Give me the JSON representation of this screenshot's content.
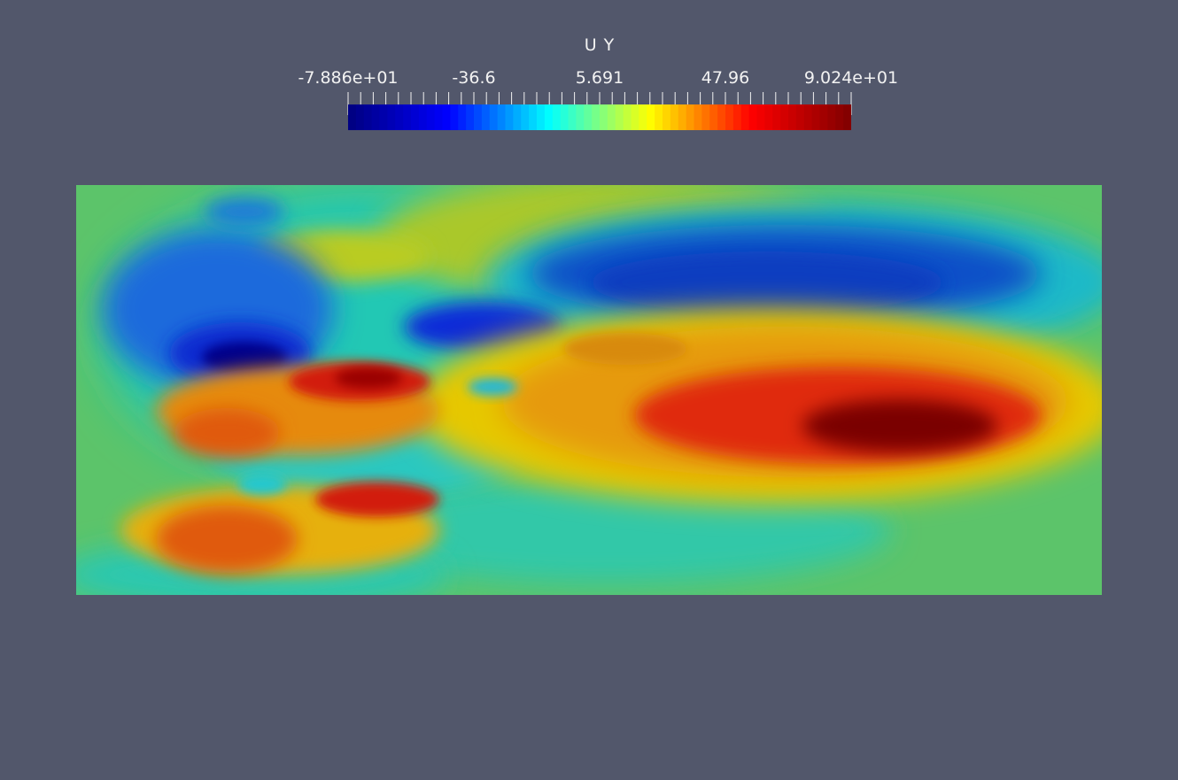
{
  "legend": {
    "title": "U Y",
    "min": -78.86,
    "max": 90.24,
    "tick_labels": [
      "-7.886e+01",
      "-36.6",
      "5.691",
      "47.96",
      "9.024e+01"
    ],
    "tick_values": [
      -78.86,
      -36.6,
      5.691,
      47.96,
      90.24
    ],
    "colormap": "jet",
    "colormap_stops": [
      "#00007f",
      "#0000ff",
      "#00ffff",
      "#ffff00",
      "#ff0000",
      "#7f0000"
    ]
  },
  "background_color": "#52576b"
}
